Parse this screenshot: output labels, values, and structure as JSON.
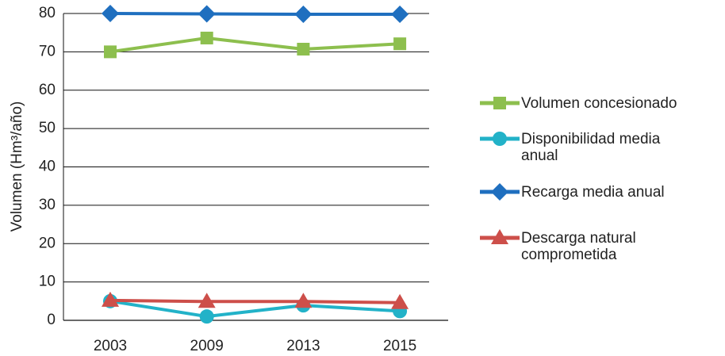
{
  "chart_data": {
    "type": "line",
    "y_label": "Volumen (Hm³/año)",
    "categories": [
      "2003",
      "2009",
      "2013",
      "2015"
    ],
    "series": [
      {
        "name": "Volumen concesionado",
        "color": "#8dbf4e",
        "marker": "square",
        "values": [
          70.0,
          73.6,
          70.7,
          72.1
        ]
      },
      {
        "name": "Disponibilidad media anual",
        "color": "#22b2c8",
        "marker": "circle",
        "values": [
          5.0,
          1.0,
          3.9,
          2.4
        ]
      },
      {
        "name": "Recarga media anual",
        "color": "#1f6fbf",
        "marker": "diamond",
        "values": [
          80.0,
          79.9,
          79.8,
          79.8
        ]
      },
      {
        "name": "Descarga natural comprometida",
        "color": "#cd4f4a",
        "marker": "triangle",
        "values": [
          5.2,
          4.9,
          4.9,
          4.6
        ]
      }
    ],
    "ylim": [
      0,
      80
    ],
    "yticks": [
      0,
      10,
      20,
      30,
      40,
      50,
      60,
      70,
      80
    ],
    "grid": true,
    "legend": "right"
  }
}
